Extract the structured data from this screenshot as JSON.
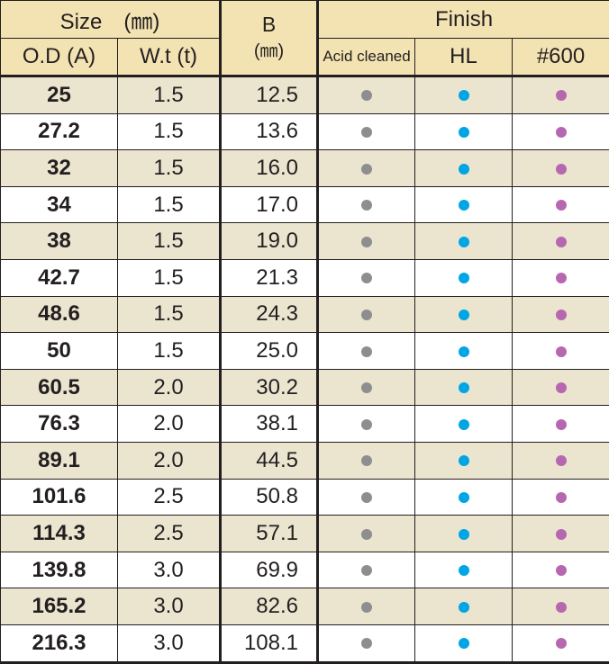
{
  "header": {
    "size_group": "Size　(㎜)",
    "od_col": "O.D (A)",
    "wt_col": "W.t (t)",
    "b_col": "B",
    "b_unit": "(㎜)",
    "finish_group": "Finish",
    "finish_cols": [
      "Acid cleaned",
      "HL",
      "#600"
    ]
  },
  "finish_colors": {
    "acid_cleaned": "#8e8e91",
    "hl": "#00a6e3",
    "no600": "#b767b0"
  },
  "rows": [
    {
      "od": "25",
      "wt": "1.5",
      "b": "12.5"
    },
    {
      "od": "27.2",
      "wt": "1.5",
      "b": "13.6"
    },
    {
      "od": "32",
      "wt": "1.5",
      "b": "16.0"
    },
    {
      "od": "34",
      "wt": "1.5",
      "b": "17.0"
    },
    {
      "od": "38",
      "wt": "1.5",
      "b": "19.0"
    },
    {
      "od": "42.7",
      "wt": "1.5",
      "b": "21.3"
    },
    {
      "od": "48.6",
      "wt": "1.5",
      "b": "24.3"
    },
    {
      "od": "50",
      "wt": "1.5",
      "b": "25.0"
    },
    {
      "od": "60.5",
      "wt": "2.0",
      "b": "30.2"
    },
    {
      "od": "76.3",
      "wt": "2.0",
      "b": "38.1"
    },
    {
      "od": "89.1",
      "wt": "2.0",
      "b": "44.5"
    },
    {
      "od": "101.6",
      "wt": "2.5",
      "b": "50.8"
    },
    {
      "od": "114.3",
      "wt": "2.5",
      "b": "57.1"
    },
    {
      "od": "139.8",
      "wt": "3.0",
      "b": "69.9"
    },
    {
      "od": "165.2",
      "wt": "3.0",
      "b": "82.6"
    },
    {
      "od": "216.3",
      "wt": "3.0",
      "b": "108.1"
    }
  ]
}
